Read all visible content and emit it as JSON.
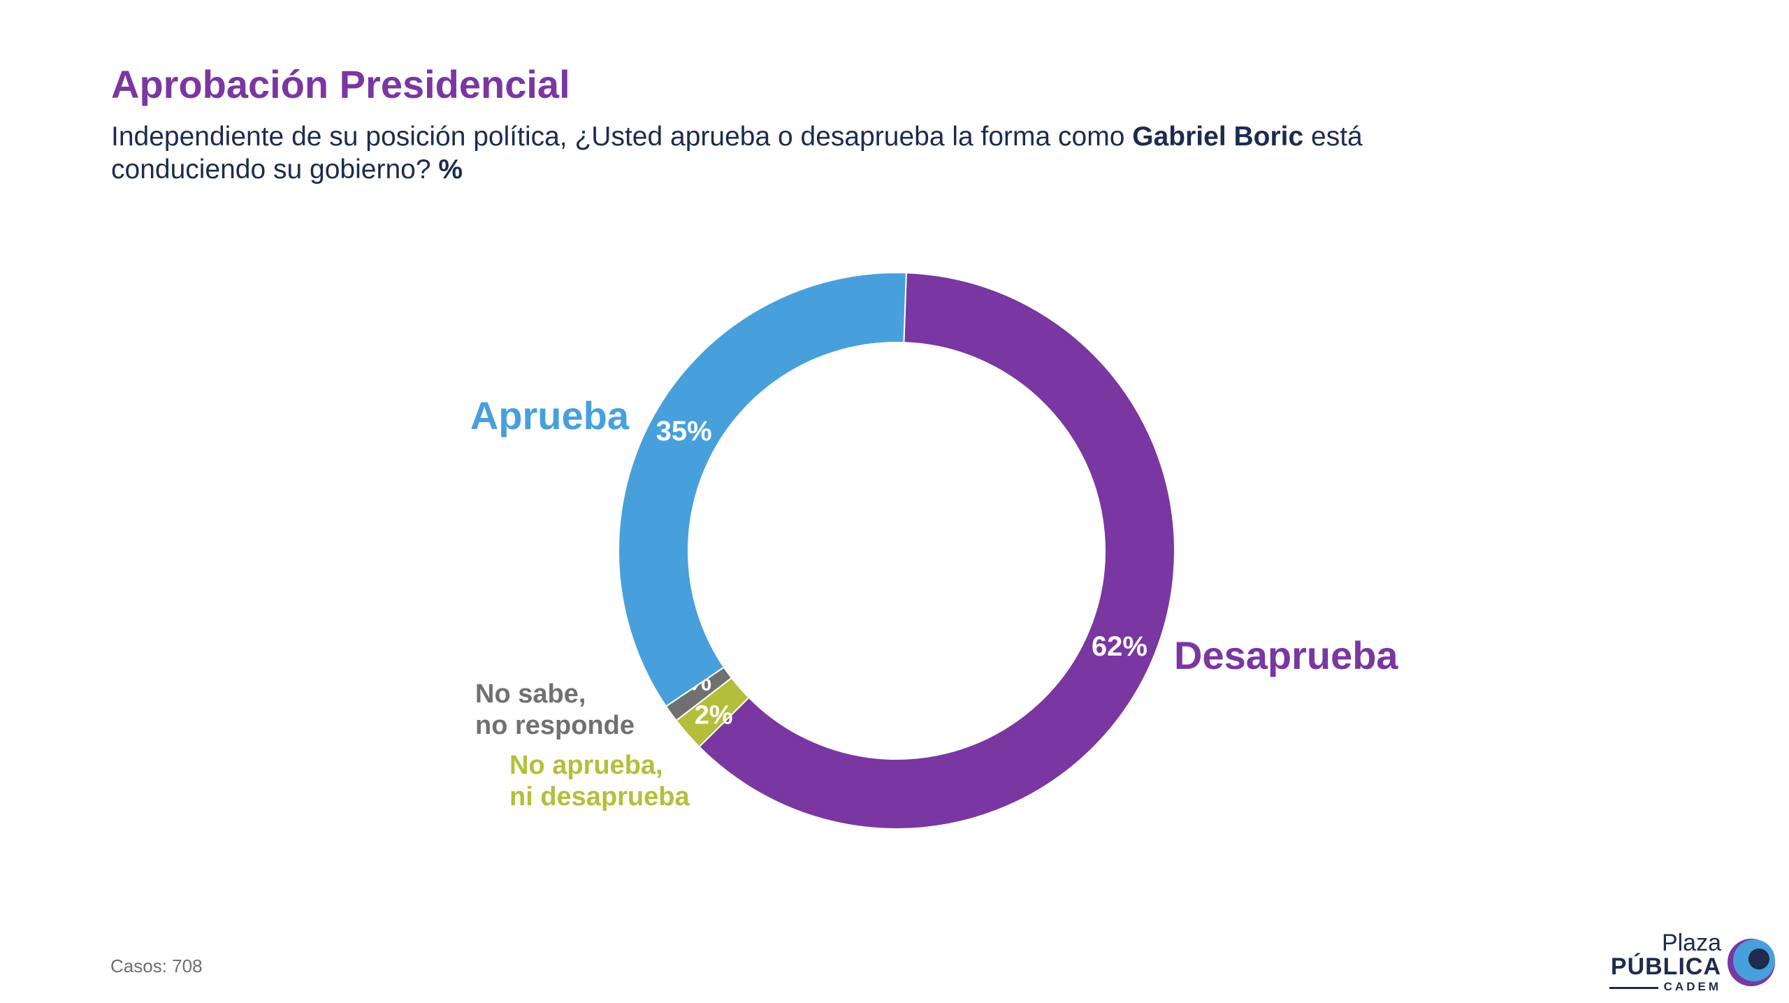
{
  "header": {
    "title": "Aprobación Presidencial",
    "question_pre": "Independiente de su posición política, ¿Usted aprueba o desaprueba la forma como ",
    "question_bold": "Gabriel Boric",
    "question_mid": " está conduciendo su gobierno? ",
    "question_unit": "%"
  },
  "footer": {
    "casos": "Casos: 708"
  },
  "logo": {
    "line1": "Plaza",
    "line2": "PÚBLICA",
    "line3": "CADEM"
  },
  "chart_data": {
    "type": "pie",
    "variant": "donut",
    "unit": "%",
    "slices": [
      {
        "label": "Desaprueba",
        "value": 62,
        "color": "#7a36a1",
        "value_label": "62%",
        "label_color": "#7a36a1"
      },
      {
        "label": "No aprueba, ni desaprueba",
        "value": 2,
        "color": "#b5be3a",
        "value_label": "2%",
        "label_color": "#b5be3a"
      },
      {
        "label": "No sabe, no responde",
        "value": 1,
        "color": "#707070",
        "value_label": "1%",
        "label_color": "#707070"
      },
      {
        "label": "Aprueba",
        "value": 35,
        "color": "#47a0dc",
        "value_label": "35%",
        "label_color": "#47a0dc"
      }
    ]
  }
}
